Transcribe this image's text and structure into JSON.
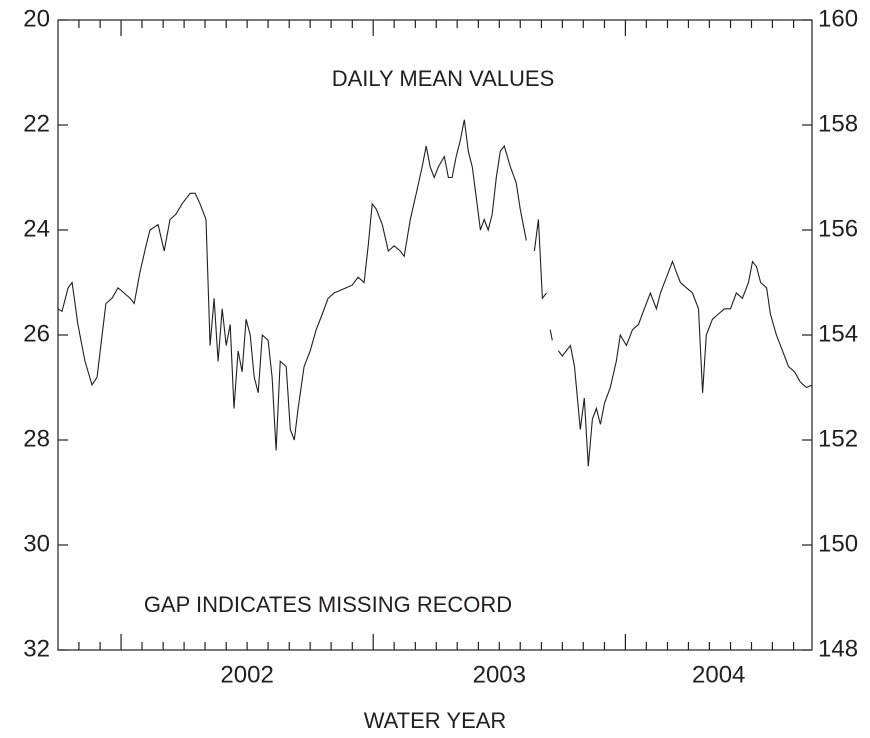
{
  "chart_data": {
    "type": "line",
    "annotations": [
      "DAILY MEAN VALUES",
      "GAP INDICATES MISSING RECORD"
    ],
    "xlabel": "WATER YEAR",
    "xlim": [
      2001.75,
      2004.74
    ],
    "xticks": [
      {
        "value": 2002.5,
        "label": "2002"
      },
      {
        "value": 2003.5,
        "label": "2003"
      },
      {
        "value": 2004.37,
        "label": "2004"
      }
    ],
    "xmajor_ticks": [
      2002,
      2003,
      2004
    ],
    "xminor_ticks": [
      2001.833,
      2001.917,
      2002.083,
      2002.167,
      2002.25,
      2002.333,
      2002.417,
      2002.5,
      2002.583,
      2002.667,
      2002.75,
      2002.833,
      2002.917,
      2003.083,
      2003.167,
      2003.25,
      2003.333,
      2003.417,
      2003.5,
      2003.583,
      2003.667,
      2003.75,
      2003.833,
      2003.917,
      2004.083,
      2004.167,
      2004.25,
      2004.333,
      2004.417,
      2004.5,
      2004.583,
      2004.667
    ],
    "ylim": [
      32,
      20
    ],
    "yticks": [
      20,
      22,
      24,
      26,
      28,
      30,
      32
    ],
    "y2lim": [
      148,
      160
    ],
    "y2ticks": [
      148,
      150,
      152,
      154,
      156,
      158,
      160
    ],
    "series": [
      {
        "color": "#231f20",
        "x": [
          2001.75,
          2001.766,
          2001.79,
          2001.806,
          2001.829,
          2001.857,
          2001.885,
          2001.905,
          2001.925,
          2001.94,
          2001.964,
          2001.988,
          2002.012,
          2002.036,
          2002.052,
          2002.075,
          2002.099,
          2002.115,
          2002.147,
          2002.171,
          2002.194,
          2002.218,
          2002.242,
          2002.274,
          2002.294,
          2002.313,
          2002.337,
          2002.353,
          2002.369,
          2002.385,
          2002.401,
          2002.417,
          2002.433,
          2002.448,
          2002.464,
          2002.48,
          2002.496,
          2002.512,
          2002.528,
          2002.544,
          2002.56,
          2002.583,
          2002.599,
          2002.615,
          2002.631,
          2002.655,
          2002.671,
          2002.687,
          2002.702,
          2002.726,
          2002.75,
          2002.774,
          2002.798,
          2002.821,
          2002.845,
          2002.869,
          2002.893,
          2002.917,
          2002.94,
          2002.964,
          2002.98,
          2002.996,
          2003.012,
          2003.036,
          2003.06,
          2003.083,
          2003.107,
          2003.123,
          2003.147,
          2003.171,
          2003.194,
          2003.21,
          2003.226,
          2003.242,
          2003.258,
          2003.282,
          2003.298,
          2003.313,
          2003.329,
          2003.345,
          2003.361,
          2003.377,
          2003.393,
          2003.409,
          2003.425,
          2003.44,
          2003.456,
          2003.472,
          2003.488,
          2003.504,
          2003.52,
          2003.544,
          2003.567,
          2003.583,
          2003.607,
          2003.625,
          2003.639,
          2003.655,
          2003.671,
          2003.687,
          2003.695,
          2003.702,
          2003.71,
          2003.722,
          2003.734,
          2003.75,
          2003.782,
          2003.798,
          2003.821,
          2003.837,
          2003.853,
          2003.869,
          2003.885,
          2003.901,
          2003.917,
          2003.94,
          2003.964,
          2003.98,
          2004.004,
          2004.028,
          2004.052,
          2004.075,
          2004.099,
          2004.123,
          2004.139,
          2004.163,
          2004.187,
          2004.202,
          2004.218,
          2004.242,
          2004.266,
          2004.29,
          2004.306,
          2004.321,
          2004.345,
          2004.369,
          2004.393,
          2004.417,
          2004.44,
          2004.464,
          2004.488,
          2004.504,
          2004.52,
          2004.536,
          2004.56,
          2004.575,
          2004.599,
          2004.623,
          2004.647,
          2004.671,
          2004.694,
          2004.718,
          2004.742
        ],
        "values": [
          25.5,
          25.55,
          25.1,
          25.0,
          25.8,
          26.5,
          26.95,
          26.8,
          26.0,
          25.4,
          25.3,
          25.1,
          25.2,
          25.3,
          25.4,
          24.8,
          24.3,
          24.0,
          23.9,
          24.4,
          23.8,
          23.7,
          23.5,
          23.3,
          23.3,
          23.5,
          23.8,
          26.2,
          25.3,
          26.5,
          25.5,
          26.2,
          25.8,
          27.4,
          26.3,
          26.7,
          25.7,
          26.0,
          26.8,
          27.1,
          26.0,
          26.1,
          26.8,
          28.2,
          26.5,
          26.6,
          27.8,
          28.0,
          27.4,
          26.6,
          26.3,
          25.9,
          25.6,
          25.3,
          25.2,
          25.15,
          25.1,
          25.05,
          24.9,
          25.0,
          24.3,
          23.5,
          23.6,
          23.9,
          24.4,
          24.3,
          24.4,
          24.5,
          23.8,
          23.3,
          22.8,
          22.4,
          22.8,
          23.0,
          22.8,
          22.6,
          23.0,
          23.0,
          22.6,
          22.3,
          21.9,
          22.5,
          22.8,
          23.4,
          24.0,
          23.8,
          24.0,
          23.7,
          23.0,
          22.5,
          22.4,
          22.8,
          23.1,
          23.6,
          24.2,
          null,
          24.4,
          23.8,
          25.3,
          25.2,
          null,
          25.9,
          26.1,
          null,
          26.3,
          26.4,
          26.2,
          26.6,
          27.8,
          27.2,
          28.5,
          27.6,
          27.4,
          27.7,
          27.3,
          27.0,
          26.5,
          26.0,
          26.2,
          25.9,
          25.8,
          25.5,
          25.2,
          25.5,
          25.2,
          24.9,
          24.6,
          24.8,
          25.0,
          25.1,
          25.2,
          25.5,
          27.1,
          26.0,
          25.7,
          25.6,
          25.5,
          25.5,
          25.2,
          25.3,
          25.0,
          24.6,
          24.7,
          25.0,
          25.1,
          25.6,
          26.0,
          26.3,
          26.6,
          26.7,
          26.9,
          27.0,
          26.95
        ]
      }
    ]
  }
}
